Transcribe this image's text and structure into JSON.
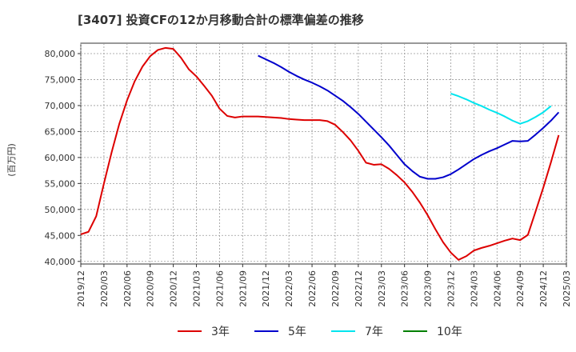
{
  "chart_data": {
    "type": "line",
    "title": "[3407]  投資CFの12か月移動合計の標準偏差の推移",
    "ylabel": "(百万円)",
    "ylim": [
      39500,
      82000
    ],
    "yticks": [
      "40,000",
      "45,000",
      "50,000",
      "55,000",
      "60,000",
      "65,000",
      "70,000",
      "75,000",
      "80,000"
    ],
    "ytick_values": [
      40000,
      45000,
      50000,
      55000,
      60000,
      65000,
      70000,
      75000,
      80000
    ],
    "xticks": [
      "2019/12",
      "2020/03",
      "2020/06",
      "2020/09",
      "2020/12",
      "2021/03",
      "2021/06",
      "2021/09",
      "2021/12",
      "2022/03",
      "2022/06",
      "2022/09",
      "2022/12",
      "2023/03",
      "2023/06",
      "2023/09",
      "2023/12",
      "2024/03",
      "2024/06",
      "2024/09",
      "2024/12",
      "2025/03"
    ],
    "grid": true,
    "legend_position": "bottom",
    "x_start": "2019/12",
    "series": [
      {
        "name": "3年",
        "color": "#dd0000",
        "start_index": 0,
        "values": [
          45200,
          45700,
          48700,
          55000,
          61000,
          66500,
          71000,
          74700,
          77500,
          79500,
          80700,
          81100,
          80900,
          79200,
          77000,
          75600,
          73800,
          71900,
          69400,
          68000,
          67700,
          67900,
          67900,
          67900,
          67800,
          67700,
          67600,
          67400,
          67300,
          67200,
          67200,
          67200,
          67000,
          66300,
          64900,
          63300,
          61300,
          59000,
          58600,
          58700,
          57800,
          56600,
          55200,
          53400,
          51300,
          48900,
          46200,
          43700,
          41700,
          40300,
          41000,
          42100,
          42600,
          43000,
          43500,
          44000,
          44400,
          44100,
          45100,
          49600,
          54200,
          59100,
          64300
        ]
      },
      {
        "name": "5年",
        "color": "#0000cc",
        "start_index": 23,
        "values": [
          79600,
          78900,
          78200,
          77400,
          76500,
          75700,
          75000,
          74400,
          73700,
          72900,
          71900,
          70900,
          69700,
          68400,
          66900,
          65400,
          63900,
          62300,
          60500,
          58700,
          57400,
          56300,
          55900,
          55900,
          56200,
          56800,
          57700,
          58700,
          59700,
          60500,
          61200,
          61800,
          62500,
          63200,
          63100,
          63200,
          64400,
          65700,
          67100,
          68700
        ]
      },
      {
        "name": "7年",
        "color": "#00e5ee",
        "start_index": 48,
        "values": [
          72300,
          71800,
          71200,
          70500,
          69900,
          69200,
          68600,
          67900,
          67100,
          66500,
          67000,
          67800,
          68700,
          69900
        ]
      },
      {
        "name": "10年",
        "color": "#008000",
        "start_index": 0,
        "values": []
      }
    ]
  }
}
